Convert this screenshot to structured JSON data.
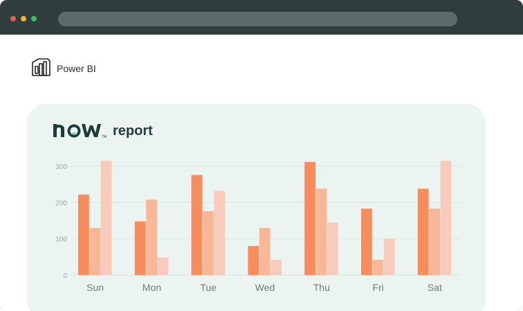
{
  "browser": {
    "window_controls": [
      "close",
      "minimize",
      "maximize"
    ],
    "address_bar_text": ""
  },
  "app": {
    "name": "Power BI",
    "icon": "power-bi-icon"
  },
  "report": {
    "brand": "now",
    "title": "report"
  },
  "colors": {
    "series1": "#f78d5c",
    "series2": "#f8b795",
    "series3": "#f8cbbd",
    "card_bg": "#ebf4f0",
    "titlebar": "#2f3e3c"
  },
  "chart_data": {
    "type": "bar",
    "categories": [
      "Sun",
      "Mon",
      "Tue",
      "Wed",
      "Thu",
      "Fri",
      "Sat"
    ],
    "series": [
      {
        "values": [
          222,
          148,
          276,
          80,
          312,
          183,
          238
        ]
      },
      {
        "values": [
          130,
          208,
          176,
          130,
          238,
          42,
          183
        ]
      },
      {
        "values": [
          315,
          48,
          232,
          42,
          145,
          100,
          315
        ]
      }
    ],
    "yticks": [
      0,
      100,
      200,
      300
    ],
    "ylim": [
      0,
      300
    ],
    "grid": true,
    "legend": "none"
  }
}
